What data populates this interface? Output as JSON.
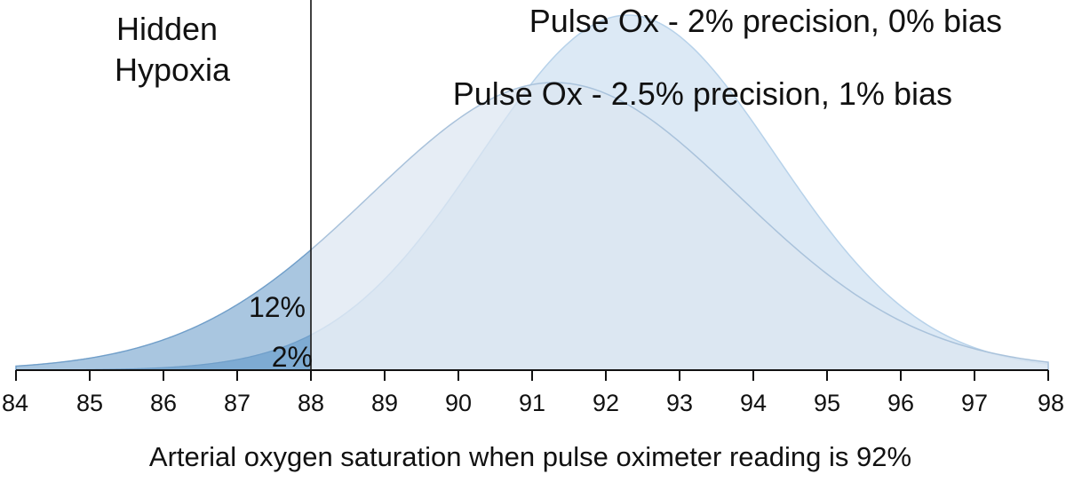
{
  "chart_data": {
    "type": "area",
    "title": "",
    "xlabel": "Arterial oxygen saturation when pulse oximeter reading is 92%",
    "ylabel": "",
    "xlim": [
      84,
      98
    ],
    "x_ticks": [
      "84",
      "85",
      "86",
      "87",
      "88",
      "89",
      "90",
      "91",
      "92",
      "93",
      "94",
      "95",
      "96",
      "97",
      "98"
    ],
    "grid": false,
    "threshold": {
      "x": 88,
      "label_lines": [
        "Hidden",
        "Hypoxia"
      ]
    },
    "series": [
      {
        "name": "Pulse Ox - 2% precision, 0% bias",
        "mean": 92.3,
        "sd": 2.0,
        "peak": 1.0,
        "hidden_hypoxia_pct": "2%",
        "fill": "#d6e5f3",
        "stroke": "#b7d2ea"
      },
      {
        "name": "Pulse Ox - 2.5% precision, 1% bias",
        "mean": 91.3,
        "sd": 2.5,
        "peak": 0.81,
        "hidden_hypoxia_pct": "12%",
        "fill": "#dbe6f1",
        "stroke": "#a9c2db"
      }
    ],
    "colors": {
      "hidden_area": "#5f97c8",
      "hidden_edge": "#6f9ec9",
      "axis": "#111111"
    }
  }
}
